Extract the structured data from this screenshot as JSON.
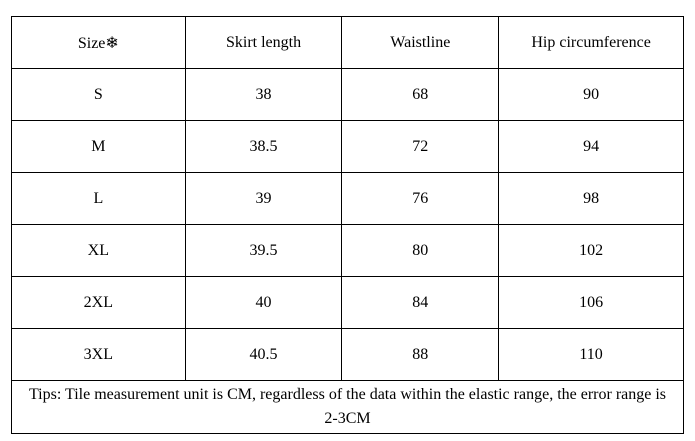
{
  "table": {
    "header": [
      "Size❄",
      "Skirt length",
      "Waistline",
      "Hip circumference"
    ],
    "rows": [
      [
        "S",
        "38",
        "68",
        "90"
      ],
      [
        "M",
        "38.5",
        "72",
        "94"
      ],
      [
        "L",
        "39",
        "76",
        "98"
      ],
      [
        "XL",
        "39.5",
        "80",
        "102"
      ],
      [
        "2XL",
        "40",
        "84",
        "106"
      ],
      [
        "3XL",
        "40.5",
        "88",
        "110"
      ]
    ],
    "note": "Tips: Tile measurement unit is CM, regardless of the data within the elastic range, the error range is 2-3CM"
  }
}
